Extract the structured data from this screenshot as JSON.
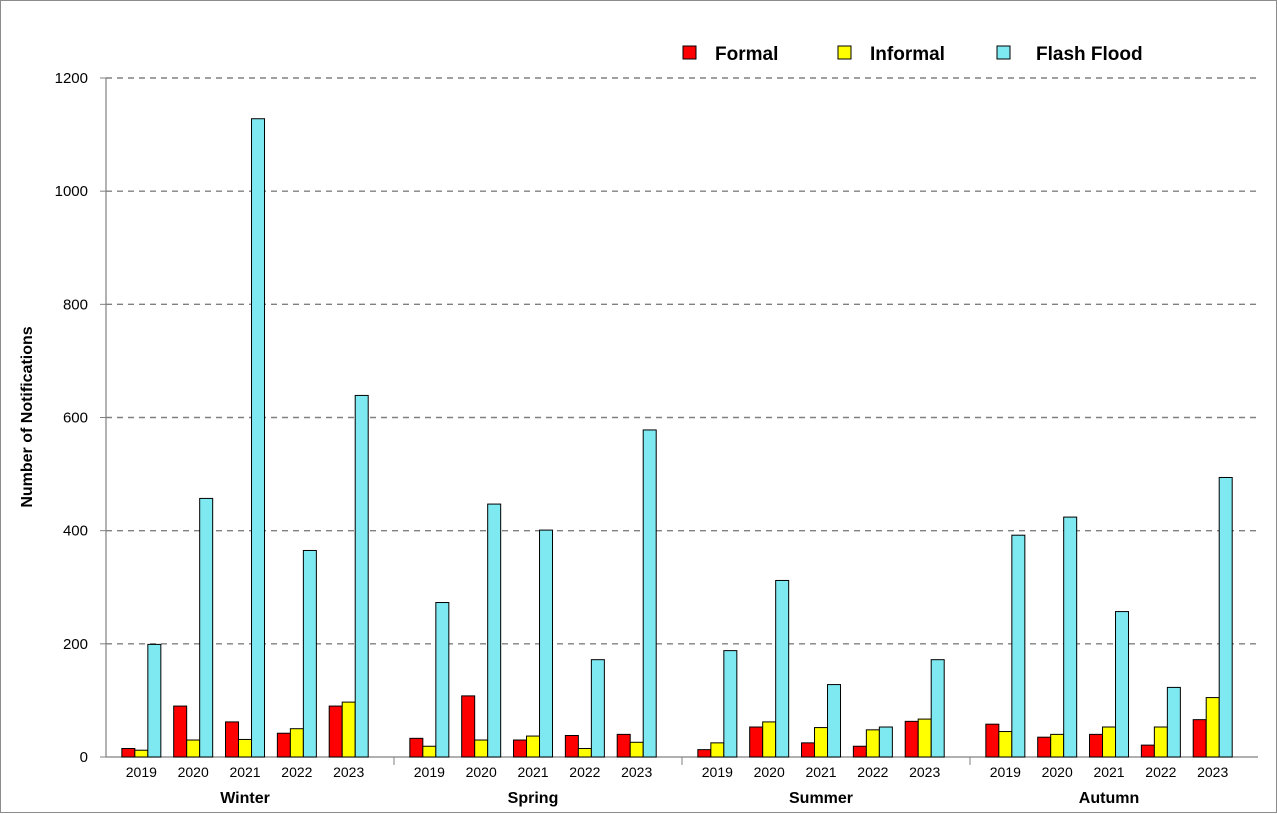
{
  "chart_data": {
    "type": "bar",
    "ylabel": "Number of Notifications",
    "ylim": [
      0,
      1200
    ],
    "yticks": [
      0,
      200,
      400,
      600,
      800,
      1000,
      1200
    ],
    "grid": true,
    "legend_position": "top-right",
    "groups": [
      {
        "season": "Winter",
        "years": [
          "2019",
          "2020",
          "2021",
          "2022",
          "2023"
        ]
      },
      {
        "season": "Spring",
        "years": [
          "2019",
          "2020",
          "2021",
          "2022",
          "2023"
        ]
      },
      {
        "season": "Summer",
        "years": [
          "2019",
          "2020",
          "2021",
          "2022",
          "2023"
        ]
      },
      {
        "season": "Autumn",
        "years": [
          "2019",
          "2020",
          "2021",
          "2022",
          "2023"
        ]
      }
    ],
    "series": [
      {
        "name": "Formal",
        "color": "#ff0000",
        "values": [
          15,
          90,
          62,
          42,
          90,
          33,
          108,
          30,
          38,
          40,
          13,
          53,
          25,
          19,
          63,
          58,
          35,
          40,
          21,
          66
        ]
      },
      {
        "name": "Informal",
        "color": "#ffff00",
        "values": [
          12,
          30,
          31,
          50,
          97,
          19,
          30,
          37,
          15,
          26,
          25,
          62,
          52,
          48,
          67,
          45,
          40,
          53,
          53,
          105
        ]
      },
      {
        "name": "Flash Flood",
        "color": "#7fe9f2",
        "values": [
          199,
          457,
          1128,
          365,
          639,
          273,
          447,
          401,
          172,
          578,
          188,
          312,
          128,
          53,
          172,
          392,
          424,
          257,
          123,
          494
        ]
      }
    ]
  }
}
